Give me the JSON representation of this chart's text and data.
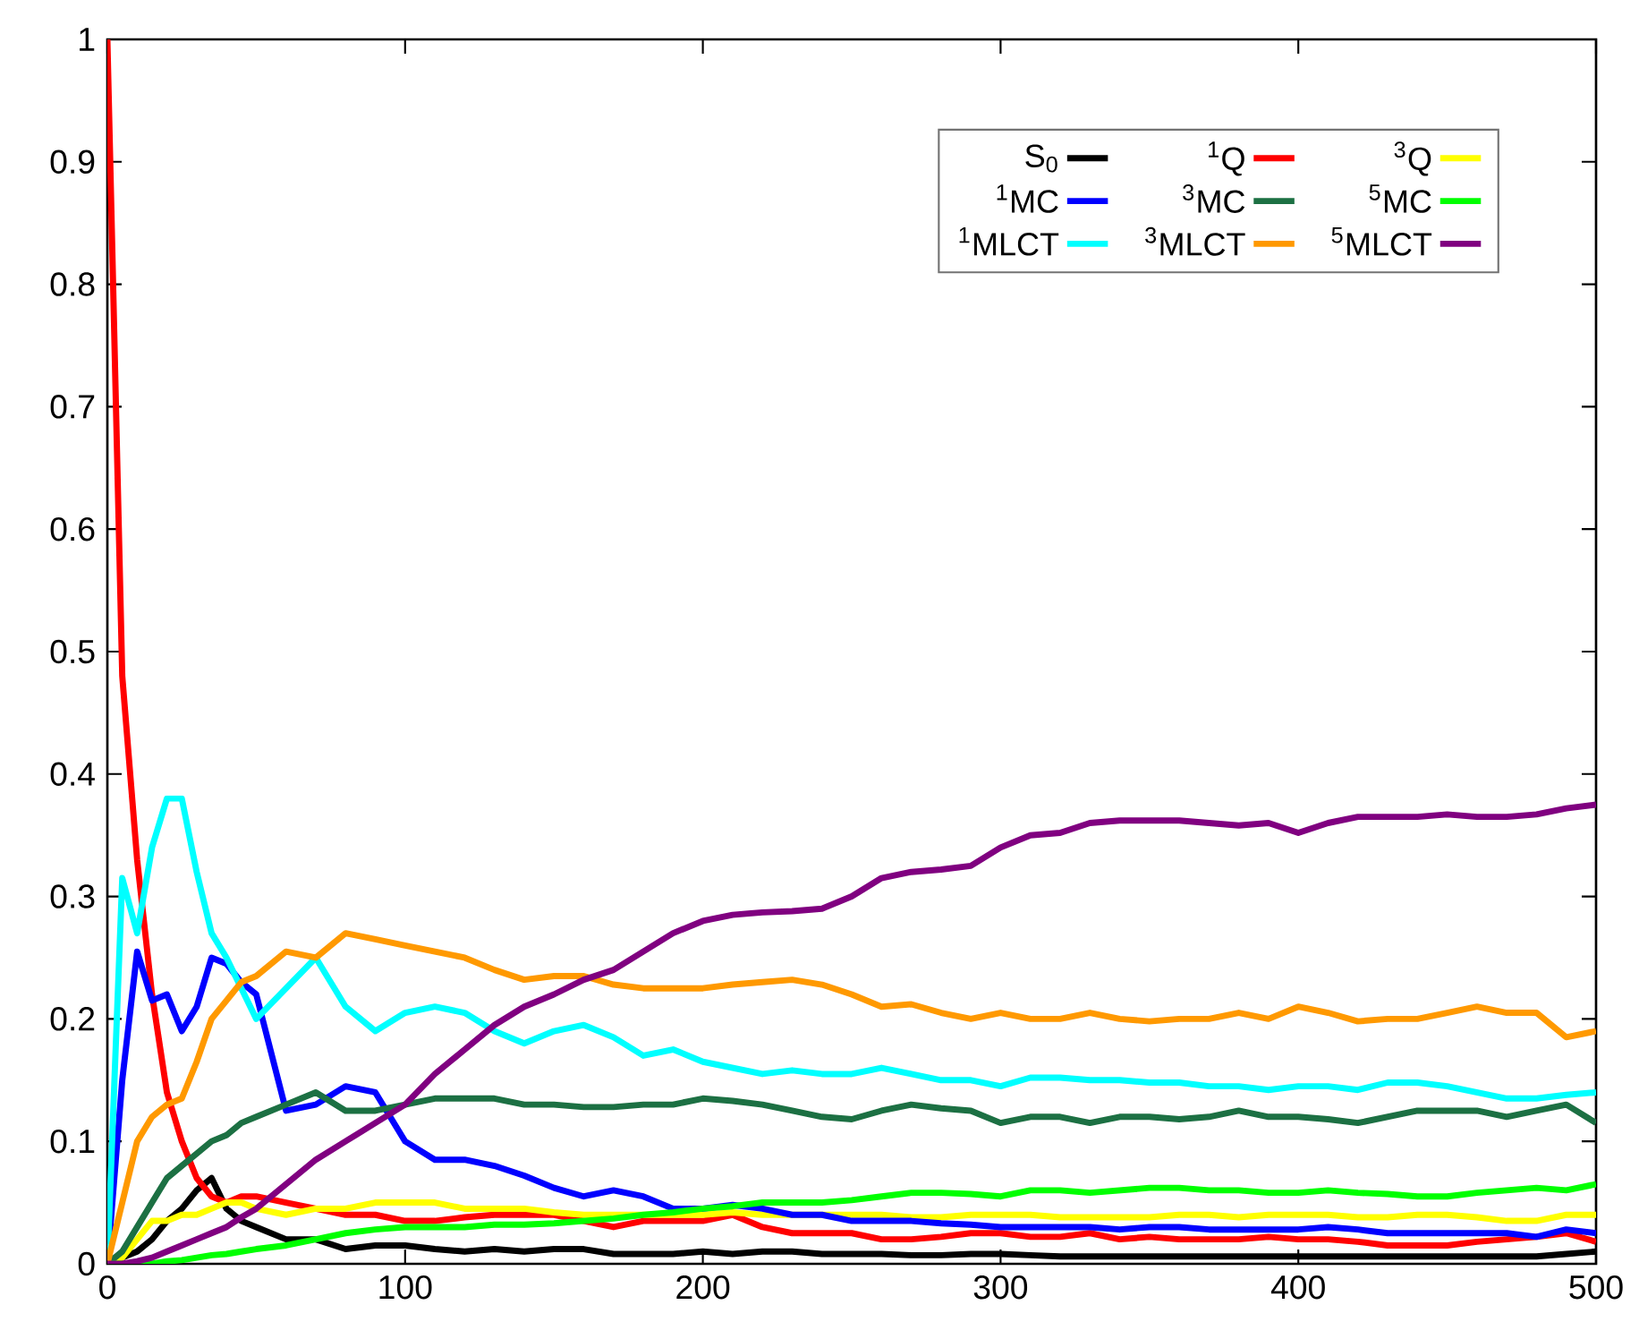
{
  "chart_data": {
    "type": "line",
    "x": [
      0,
      5,
      10,
      15,
      20,
      25,
      30,
      35,
      40,
      45,
      50,
      60,
      70,
      80,
      90,
      100,
      110,
      120,
      130,
      140,
      150,
      160,
      170,
      180,
      190,
      200,
      210,
      220,
      230,
      240,
      250,
      260,
      270,
      280,
      290,
      300,
      310,
      320,
      330,
      340,
      350,
      360,
      370,
      380,
      390,
      400,
      410,
      420,
      430,
      440,
      450,
      460,
      470,
      480,
      490,
      500
    ],
    "xlim": [
      0,
      500
    ],
    "xticks": [
      0,
      100,
      200,
      300,
      400,
      500
    ],
    "ylim": [
      0,
      1
    ],
    "yticks": [
      0,
      0.1,
      0.2,
      0.3,
      0.4,
      0.5,
      0.6,
      0.7,
      0.8,
      0.9,
      1
    ],
    "legend": "top right",
    "series": [
      {
        "name": "S$_{0}$",
        "color": "#000000",
        "values": [
          0,
          0.005,
          0.01,
          0.02,
          0.035,
          0.045,
          0.06,
          0.07,
          0.045,
          0.035,
          0.03,
          0.02,
          0.02,
          0.012,
          0.015,
          0.015,
          0.012,
          0.01,
          0.012,
          0.01,
          0.012,
          0.012,
          0.008,
          0.008,
          0.008,
          0.01,
          0.008,
          0.01,
          0.01,
          0.008,
          0.008,
          0.008,
          0.007,
          0.007,
          0.008,
          0.008,
          0.007,
          0.006,
          0.006,
          0.006,
          0.006,
          0.006,
          0.006,
          0.006,
          0.006,
          0.006,
          0.006,
          0.006,
          0.006,
          0.006,
          0.006,
          0.006,
          0.006,
          0.006,
          0.008,
          0.01
        ]
      },
      {
        "name": "$^{1}$Q",
        "color": "#ff0000",
        "values": [
          1,
          0.48,
          0.33,
          0.22,
          0.14,
          0.1,
          0.07,
          0.055,
          0.05,
          0.055,
          0.055,
          0.05,
          0.045,
          0.04,
          0.04,
          0.035,
          0.035,
          0.038,
          0.04,
          0.04,
          0.04,
          0.035,
          0.03,
          0.035,
          0.035,
          0.035,
          0.04,
          0.03,
          0.025,
          0.025,
          0.025,
          0.02,
          0.02,
          0.022,
          0.025,
          0.025,
          0.022,
          0.022,
          0.025,
          0.02,
          0.022,
          0.02,
          0.02,
          0.02,
          0.022,
          0.02,
          0.02,
          0.018,
          0.015,
          0.015,
          0.015,
          0.018,
          0.02,
          0.022,
          0.025,
          0.018
        ]
      },
      {
        "name": "$^{3}$Q",
        "color": "#ffff00",
        "values": [
          0,
          0.005,
          0.02,
          0.035,
          0.035,
          0.04,
          0.04,
          0.045,
          0.05,
          0.05,
          0.045,
          0.04,
          0.045,
          0.045,
          0.05,
          0.05,
          0.05,
          0.045,
          0.045,
          0.045,
          0.042,
          0.04,
          0.04,
          0.04,
          0.04,
          0.04,
          0.042,
          0.04,
          0.04,
          0.04,
          0.04,
          0.04,
          0.038,
          0.038,
          0.04,
          0.04,
          0.04,
          0.038,
          0.038,
          0.038,
          0.038,
          0.04,
          0.04,
          0.038,
          0.04,
          0.04,
          0.04,
          0.038,
          0.038,
          0.04,
          0.04,
          0.038,
          0.035,
          0.035,
          0.04,
          0.04
        ]
      },
      {
        "name": "$^{1}$MC",
        "color": "#0000ff",
        "values": [
          0,
          0.15,
          0.255,
          0.215,
          0.22,
          0.19,
          0.21,
          0.25,
          0.245,
          0.23,
          0.22,
          0.125,
          0.13,
          0.145,
          0.14,
          0.1,
          0.085,
          0.085,
          0.08,
          0.072,
          0.062,
          0.055,
          0.06,
          0.055,
          0.045,
          0.045,
          0.048,
          0.045,
          0.04,
          0.04,
          0.035,
          0.035,
          0.035,
          0.033,
          0.032,
          0.03,
          0.03,
          0.03,
          0.03,
          0.028,
          0.03,
          0.03,
          0.028,
          0.028,
          0.028,
          0.028,
          0.03,
          0.028,
          0.025,
          0.025,
          0.025,
          0.025,
          0.025,
          0.022,
          0.028,
          0.025
        ]
      },
      {
        "name": "$^{3}$MC",
        "color": "#1c7043",
        "values": [
          0,
          0.01,
          0.03,
          0.05,
          0.07,
          0.08,
          0.09,
          0.1,
          0.105,
          0.115,
          0.12,
          0.13,
          0.14,
          0.125,
          0.125,
          0.13,
          0.135,
          0.135,
          0.135,
          0.13,
          0.13,
          0.128,
          0.128,
          0.13,
          0.13,
          0.135,
          0.133,
          0.13,
          0.125,
          0.12,
          0.118,
          0.125,
          0.13,
          0.127,
          0.125,
          0.115,
          0.12,
          0.12,
          0.115,
          0.12,
          0.12,
          0.118,
          0.12,
          0.125,
          0.12,
          0.12,
          0.118,
          0.115,
          0.12,
          0.125,
          0.125,
          0.125,
          0.12,
          0.125,
          0.13,
          0.115
        ]
      },
      {
        "name": "$^{5}$MC",
        "color": "#00ff00",
        "values": [
          0,
          0,
          0,
          0,
          0.002,
          0.003,
          0.005,
          0.007,
          0.008,
          0.01,
          0.012,
          0.015,
          0.02,
          0.025,
          0.028,
          0.03,
          0.03,
          0.03,
          0.032,
          0.032,
          0.033,
          0.035,
          0.037,
          0.04,
          0.042,
          0.045,
          0.047,
          0.05,
          0.05,
          0.05,
          0.052,
          0.055,
          0.058,
          0.058,
          0.057,
          0.055,
          0.06,
          0.06,
          0.058,
          0.06,
          0.062,
          0.062,
          0.06,
          0.06,
          0.058,
          0.058,
          0.06,
          0.058,
          0.057,
          0.055,
          0.055,
          0.058,
          0.06,
          0.062,
          0.06,
          0.065
        ]
      },
      {
        "name": "$^{1}$MLCT",
        "color": "#00ffff",
        "values": [
          0,
          0.315,
          0.27,
          0.34,
          0.38,
          0.38,
          0.32,
          0.27,
          0.25,
          0.225,
          0.2,
          0.225,
          0.25,
          0.21,
          0.19,
          0.205,
          0.21,
          0.205,
          0.19,
          0.18,
          0.19,
          0.195,
          0.185,
          0.17,
          0.175,
          0.165,
          0.16,
          0.155,
          0.158,
          0.155,
          0.155,
          0.16,
          0.155,
          0.15,
          0.15,
          0.145,
          0.152,
          0.152,
          0.15,
          0.15,
          0.148,
          0.148,
          0.145,
          0.145,
          0.142,
          0.145,
          0.145,
          0.142,
          0.148,
          0.148,
          0.145,
          0.14,
          0.135,
          0.135,
          0.138,
          0.14
        ]
      },
      {
        "name": "$^{3}$MLCT",
        "color": "#ff9900",
        "values": [
          0,
          0.05,
          0.1,
          0.12,
          0.13,
          0.135,
          0.165,
          0.2,
          0.215,
          0.23,
          0.235,
          0.255,
          0.25,
          0.27,
          0.265,
          0.26,
          0.255,
          0.25,
          0.24,
          0.232,
          0.235,
          0.235,
          0.228,
          0.225,
          0.225,
          0.225,
          0.228,
          0.23,
          0.232,
          0.228,
          0.22,
          0.21,
          0.212,
          0.205,
          0.2,
          0.205,
          0.2,
          0.2,
          0.205,
          0.2,
          0.198,
          0.2,
          0.2,
          0.205,
          0.2,
          0.21,
          0.205,
          0.198,
          0.2,
          0.2,
          0.205,
          0.21,
          0.205,
          0.205,
          0.185,
          0.19
        ]
      },
      {
        "name": "$^{5}$MLCT",
        "color": "#800080",
        "values": [
          0,
          0,
          0.002,
          0.005,
          0.01,
          0.015,
          0.02,
          0.025,
          0.03,
          0.038,
          0.045,
          0.065,
          0.085,
          0.1,
          0.115,
          0.13,
          0.155,
          0.175,
          0.195,
          0.21,
          0.22,
          0.232,
          0.24,
          0.255,
          0.27,
          0.28,
          0.285,
          0.287,
          0.288,
          0.29,
          0.3,
          0.315,
          0.32,
          0.322,
          0.325,
          0.34,
          0.35,
          0.352,
          0.36,
          0.362,
          0.362,
          0.362,
          0.36,
          0.358,
          0.36,
          0.352,
          0.36,
          0.365,
          0.365,
          0.365,
          0.367,
          0.365,
          0.365,
          0.367,
          0.372,
          0.375
        ]
      }
    ]
  }
}
